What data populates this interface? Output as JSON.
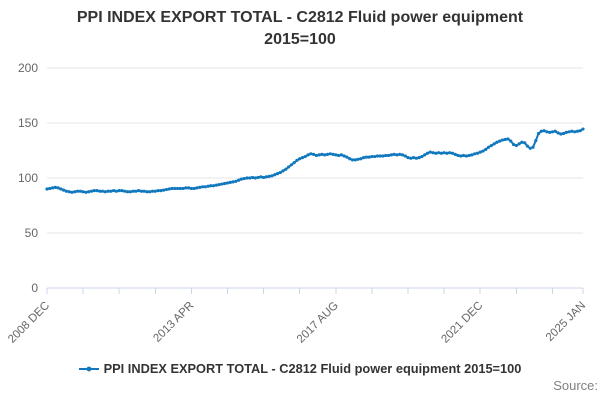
{
  "header": {
    "title_line1": "PPI INDEX EXPORT TOTAL - C2812 Fluid power equipment",
    "title_line2": "2015=100"
  },
  "legend": {
    "label": "PPI INDEX EXPORT TOTAL - C2812 Fluid power equipment 2015=100"
  },
  "footer": {
    "source_label": "Source:"
  },
  "colors": {
    "line": "#1178be",
    "grid": "#e6e6e6",
    "axis": "#ccd6eb",
    "tick_label": "#666666",
    "title": "#333333",
    "source": "#808080"
  },
  "chart_data": {
    "type": "line",
    "title": "PPI INDEX EXPORT TOTAL - C2812 Fluid power equipment 2015=100",
    "series_name": "PPI INDEX EXPORT TOTAL - C2812 Fluid power equipment 2015=100",
    "frequency": "monthly",
    "x_start": "2008 DEC",
    "x_end": "2025 JAN",
    "ylim": [
      0,
      200
    ],
    "yticks": [
      0,
      50,
      100,
      150,
      200
    ],
    "grid": "horizontal",
    "legend_position": "bottom",
    "x_tick_months": [
      0,
      13,
      26,
      39,
      52,
      65,
      78,
      91,
      104,
      117,
      130,
      143,
      156,
      169,
      182,
      193
    ],
    "x_labels": [
      {
        "month": 0,
        "label": "2008 DEC"
      },
      {
        "month": 52,
        "label": "2013 APR"
      },
      {
        "month": 104,
        "label": "2017 AUG"
      },
      {
        "month": 156,
        "label": "2021 DEC"
      },
      {
        "month": 193,
        "label": "2025 JAN"
      }
    ],
    "values": [
      90.0,
      90.5,
      91.0,
      91.5,
      91.0,
      90.0,
      89.0,
      88.0,
      87.5,
      87.0,
      87.5,
      88.0,
      88.0,
      87.5,
      87.0,
      87.5,
      88.0,
      88.5,
      88.5,
      88.0,
      88.0,
      87.5,
      88.0,
      88.0,
      88.5,
      88.0,
      88.5,
      88.5,
      88.0,
      87.5,
      87.5,
      88.0,
      88.0,
      88.5,
      88.0,
      88.0,
      87.5,
      87.5,
      88.0,
      88.0,
      88.5,
      88.5,
      89.0,
      89.5,
      90.0,
      90.5,
      90.5,
      90.5,
      90.5,
      90.5,
      91.0,
      91.0,
      90.5,
      90.5,
      91.0,
      91.5,
      92.0,
      92.0,
      92.5,
      93.0,
      93.0,
      93.5,
      94.0,
      94.5,
      95.0,
      95.5,
      96.0,
      96.5,
      97.0,
      98.0,
      99.0,
      99.5,
      100.0,
      100.0,
      100.5,
      100.0,
      100.5,
      101.0,
      100.5,
      101.0,
      101.5,
      102.0,
      103.0,
      104.0,
      105.0,
      106.5,
      108.0,
      110.0,
      112.0,
      114.0,
      116.0,
      117.5,
      118.5,
      119.5,
      121.0,
      122.0,
      121.5,
      120.5,
      121.0,
      121.5,
      121.0,
      121.5,
      122.0,
      121.5,
      121.0,
      120.5,
      121.0,
      120.0,
      119.0,
      117.5,
      116.5,
      116.5,
      117.0,
      117.5,
      118.5,
      119.0,
      119.0,
      119.5,
      119.5,
      120.0,
      120.0,
      120.0,
      120.5,
      120.5,
      121.0,
      121.5,
      121.0,
      121.5,
      121.0,
      120.0,
      118.5,
      118.0,
      118.5,
      118.0,
      118.5,
      119.5,
      121.0,
      122.5,
      123.5,
      123.0,
      122.5,
      123.0,
      122.5,
      123.0,
      122.5,
      123.0,
      122.5,
      121.5,
      120.5,
      120.0,
      120.5,
      120.0,
      120.5,
      121.0,
      122.0,
      122.5,
      123.5,
      124.5,
      126.0,
      128.0,
      129.5,
      131.0,
      132.5,
      133.5,
      134.5,
      135.0,
      135.5,
      133.5,
      130.5,
      129.5,
      131.0,
      132.5,
      132.0,
      129.0,
      127.0,
      128.0,
      134.0,
      140.5,
      142.5,
      143.0,
      142.0,
      141.5,
      142.0,
      142.5,
      141.0,
      140.0,
      140.5,
      141.5,
      142.0,
      142.5,
      142.0,
      142.5,
      143.0,
      144.5
    ]
  }
}
